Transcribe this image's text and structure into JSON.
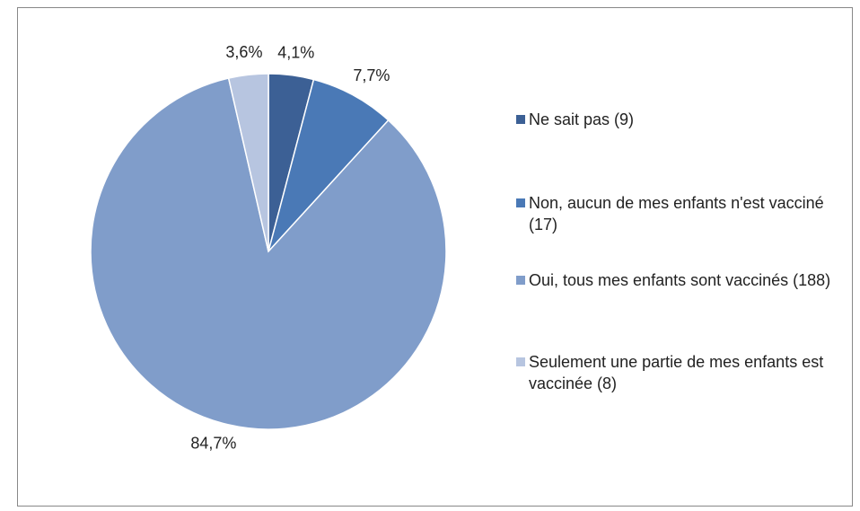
{
  "chart_data": {
    "type": "pie",
    "categories": [
      "Ne sait pas (9)",
      "Non, aucun de mes enfants n'est vacciné (17)",
      "Oui, tous mes enfants sont vaccinés (188)",
      "Seulement une partie de mes enfants est vaccinée (8)"
    ],
    "values": [
      4.1,
      7.7,
      84.7,
      3.6
    ],
    "value_labels": [
      "4,1%",
      "7,7%",
      "84,7%",
      "3,6%"
    ],
    "colors": [
      "#3c6095",
      "#4a79b6",
      "#809dca",
      "#b7c5e0"
    ],
    "legend": "right"
  }
}
